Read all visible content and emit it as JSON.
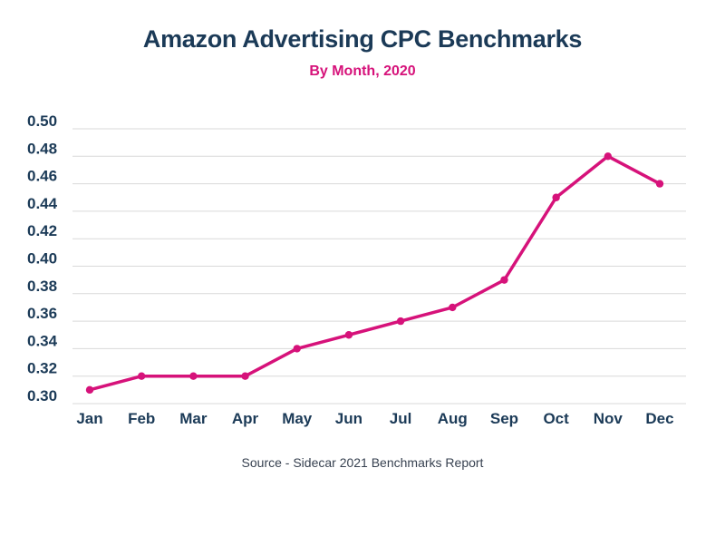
{
  "colors": {
    "title": "#1b3a57",
    "accent": "#d6127a",
    "axis_text": "#1b3a57",
    "grid": "#d9d9d9"
  },
  "source_text": "Source - Sidecar 2021 Benchmarks Report",
  "chart_data": {
    "type": "line",
    "title": "Amazon Advertising CPC Benchmarks",
    "subtitle": "By Month, 2020",
    "xlabel": "",
    "ylabel": "",
    "categories": [
      "Jan",
      "Feb",
      "Mar",
      "Apr",
      "May",
      "Jun",
      "Jul",
      "Aug",
      "Sep",
      "Oct",
      "Nov",
      "Dec"
    ],
    "series": [
      {
        "values": [
          0.31,
          0.32,
          0.32,
          0.32,
          0.34,
          0.35,
          0.36,
          0.37,
          0.39,
          0.45,
          0.48,
          0.46
        ]
      }
    ],
    "ylim": [
      0.3,
      0.5
    ],
    "yticks": [
      "0.50",
      "0.48",
      "0.46",
      "0.44",
      "0.42",
      "0.40",
      "0.38",
      "0.36",
      "0.34",
      "0.32",
      "0.30"
    ],
    "grid": true,
    "legend": "none"
  }
}
